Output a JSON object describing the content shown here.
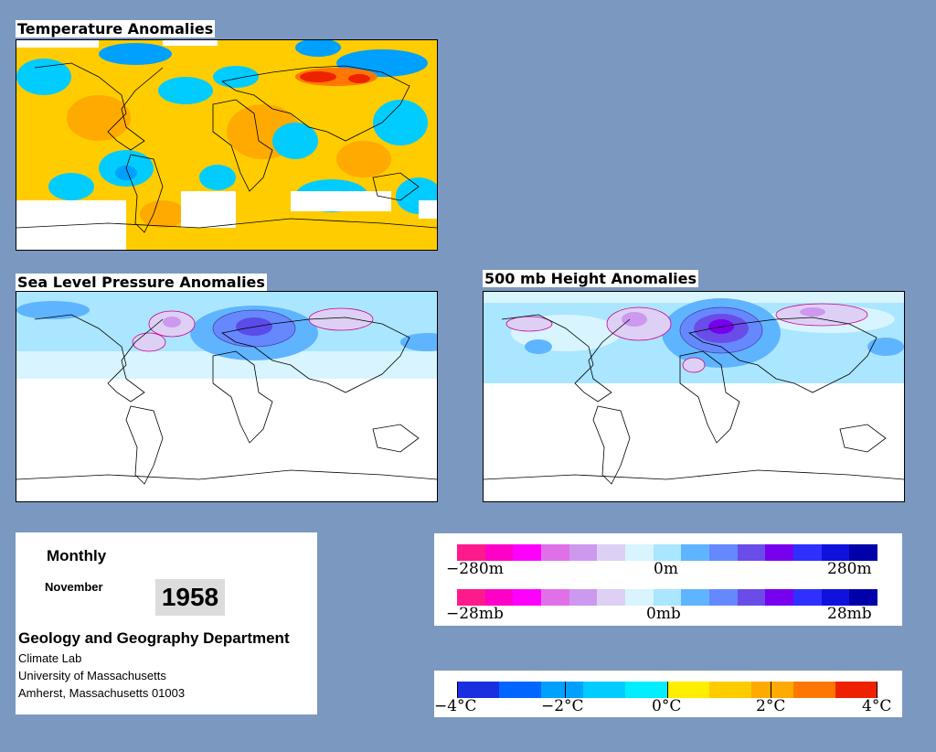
{
  "panels": {
    "temperature": {
      "title": "Temperature Anomalies"
    },
    "slp": {
      "title": "Sea Level Pressure Anomalies"
    },
    "height500": {
      "title": "500 mb Height Anomalies"
    }
  },
  "info": {
    "frequency": "Monthly",
    "month": "November",
    "year": "1958",
    "department": "Geology and Geography Department",
    "address_lines": [
      "Climate Lab",
      "University of Massachusetts",
      "Amherst, Massachusetts 01003"
    ]
  },
  "legends": {
    "height": {
      "min_label": "−280m",
      "mid_label": "0m",
      "max_label": "280m"
    },
    "pressure": {
      "min_label": "−28mb",
      "mid_label": "0mb",
      "max_label": "28mb"
    },
    "temperature": {
      "labels": [
        "−4°C",
        "−2°C",
        "0°C",
        "2°C",
        "4°C"
      ]
    }
  },
  "colors": {
    "background": "#7b98c0",
    "pressure_scale": [
      "#ff1a8c",
      "#ff00c8",
      "#ff00ff",
      "#e070e8",
      "#cc99ee",
      "#ddd0f4",
      "#d8f4ff",
      "#aae6ff",
      "#5fb4ff",
      "#6688ff",
      "#6a4ce8",
      "#7700ee",
      "#2f2fff",
      "#1111dd",
      "#0000aa"
    ],
    "temperature_scale": [
      "#1a2fe0",
      "#0066ff",
      "#00a0ff",
      "#00ccff",
      "#00eeff",
      "#ffee00",
      "#ffcc00",
      "#ffaa00",
      "#ff7700",
      "#ee2200"
    ]
  }
}
